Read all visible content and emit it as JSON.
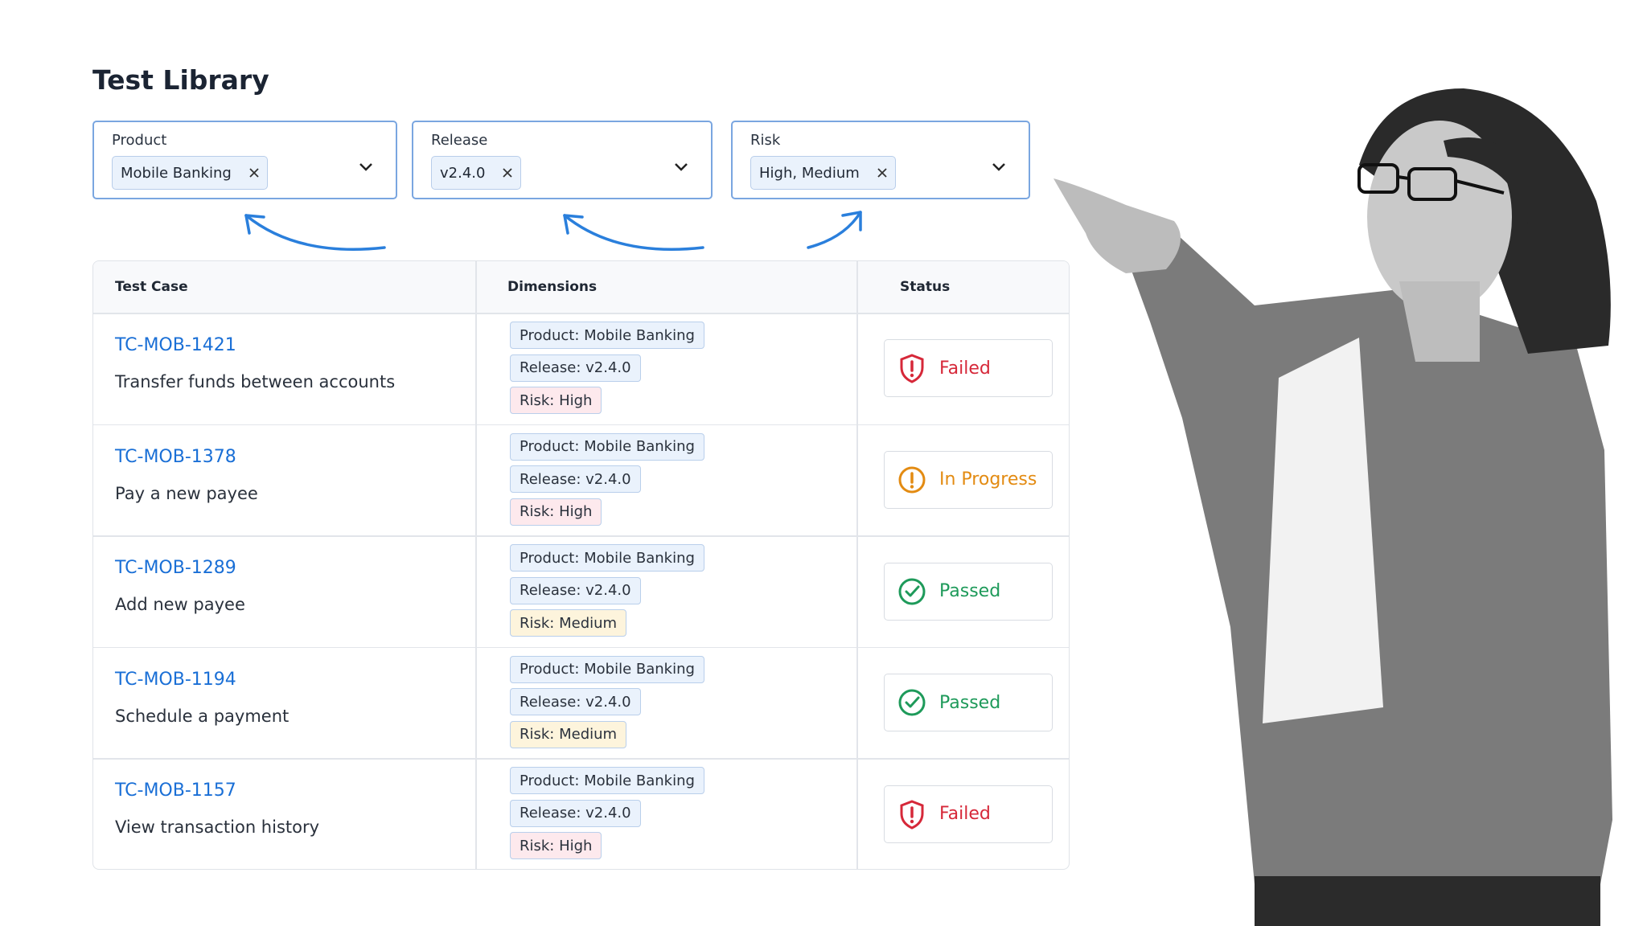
{
  "header": {
    "title": "Test Library"
  },
  "filters": [
    {
      "label": "Product",
      "chip": "Mobile Banking"
    },
    {
      "label": "Release",
      "chip": "v2.4.0"
    },
    {
      "label": "Risk",
      "chip": "High, Medium"
    }
  ],
  "table": {
    "columns": [
      "Test Case",
      "Dimensions",
      "Status"
    ],
    "rows": [
      {
        "id": "TC-MOB-1421",
        "title": "Transfer funds between accounts",
        "tags": [
          {
            "text": "Product: Mobile Banking",
            "color": "#eaf2fc"
          },
          {
            "text": "Release: v2.4.0",
            "color": "#eaf2fc"
          },
          {
            "text": "Risk: High",
            "color": "#fde9ed"
          }
        ],
        "status": {
          "label": "Failed",
          "color": "#d62839",
          "icon": "shield"
        }
      },
      {
        "id": "TC-MOB-1378",
        "title": "Pay a new payee",
        "tags": [
          {
            "text": "Product: Mobile Banking",
            "color": "#eaf2fc"
          },
          {
            "text": "Release: v2.4.0",
            "color": "#eaf2fc"
          },
          {
            "text": "Risk: High",
            "color": "#fde9ed"
          }
        ],
        "status": {
          "label": "In Progress",
          "color": "#e38b12",
          "icon": "alert"
        }
      },
      {
        "id": "TC-MOB-1289",
        "title": "Add new payee",
        "tags": [
          {
            "text": "Product: Mobile Banking",
            "color": "#eaf2fc"
          },
          {
            "text": "Release: v2.4.0",
            "color": "#eaf2fc"
          },
          {
            "text": "Risk: Medium",
            "color": "#fdf4dc"
          }
        ],
        "status": {
          "label": "Passed",
          "color": "#1e9a5a",
          "icon": "check"
        }
      },
      {
        "id": "TC-MOB-1194",
        "title": "Schedule a payment",
        "tags": [
          {
            "text": "Product: Mobile Banking",
            "color": "#eaf2fc"
          },
          {
            "text": "Release: v2.4.0",
            "color": "#eaf2fc"
          },
          {
            "text": "Risk: Medium",
            "color": "#fdf4dc"
          }
        ],
        "status": {
          "label": "Passed",
          "color": "#1e9a5a",
          "icon": "check"
        }
      },
      {
        "id": "TC-MOB-1157",
        "title": "View transaction history",
        "tags": [
          {
            "text": "Product: Mobile Banking",
            "color": "#eaf2fc"
          },
          {
            "text": "Release: v2.4.0",
            "color": "#eaf2fc"
          },
          {
            "text": "Risk: High",
            "color": "#fde9ed"
          }
        ],
        "status": {
          "label": "Failed",
          "color": "#d62839",
          "icon": "shield"
        }
      }
    ]
  }
}
